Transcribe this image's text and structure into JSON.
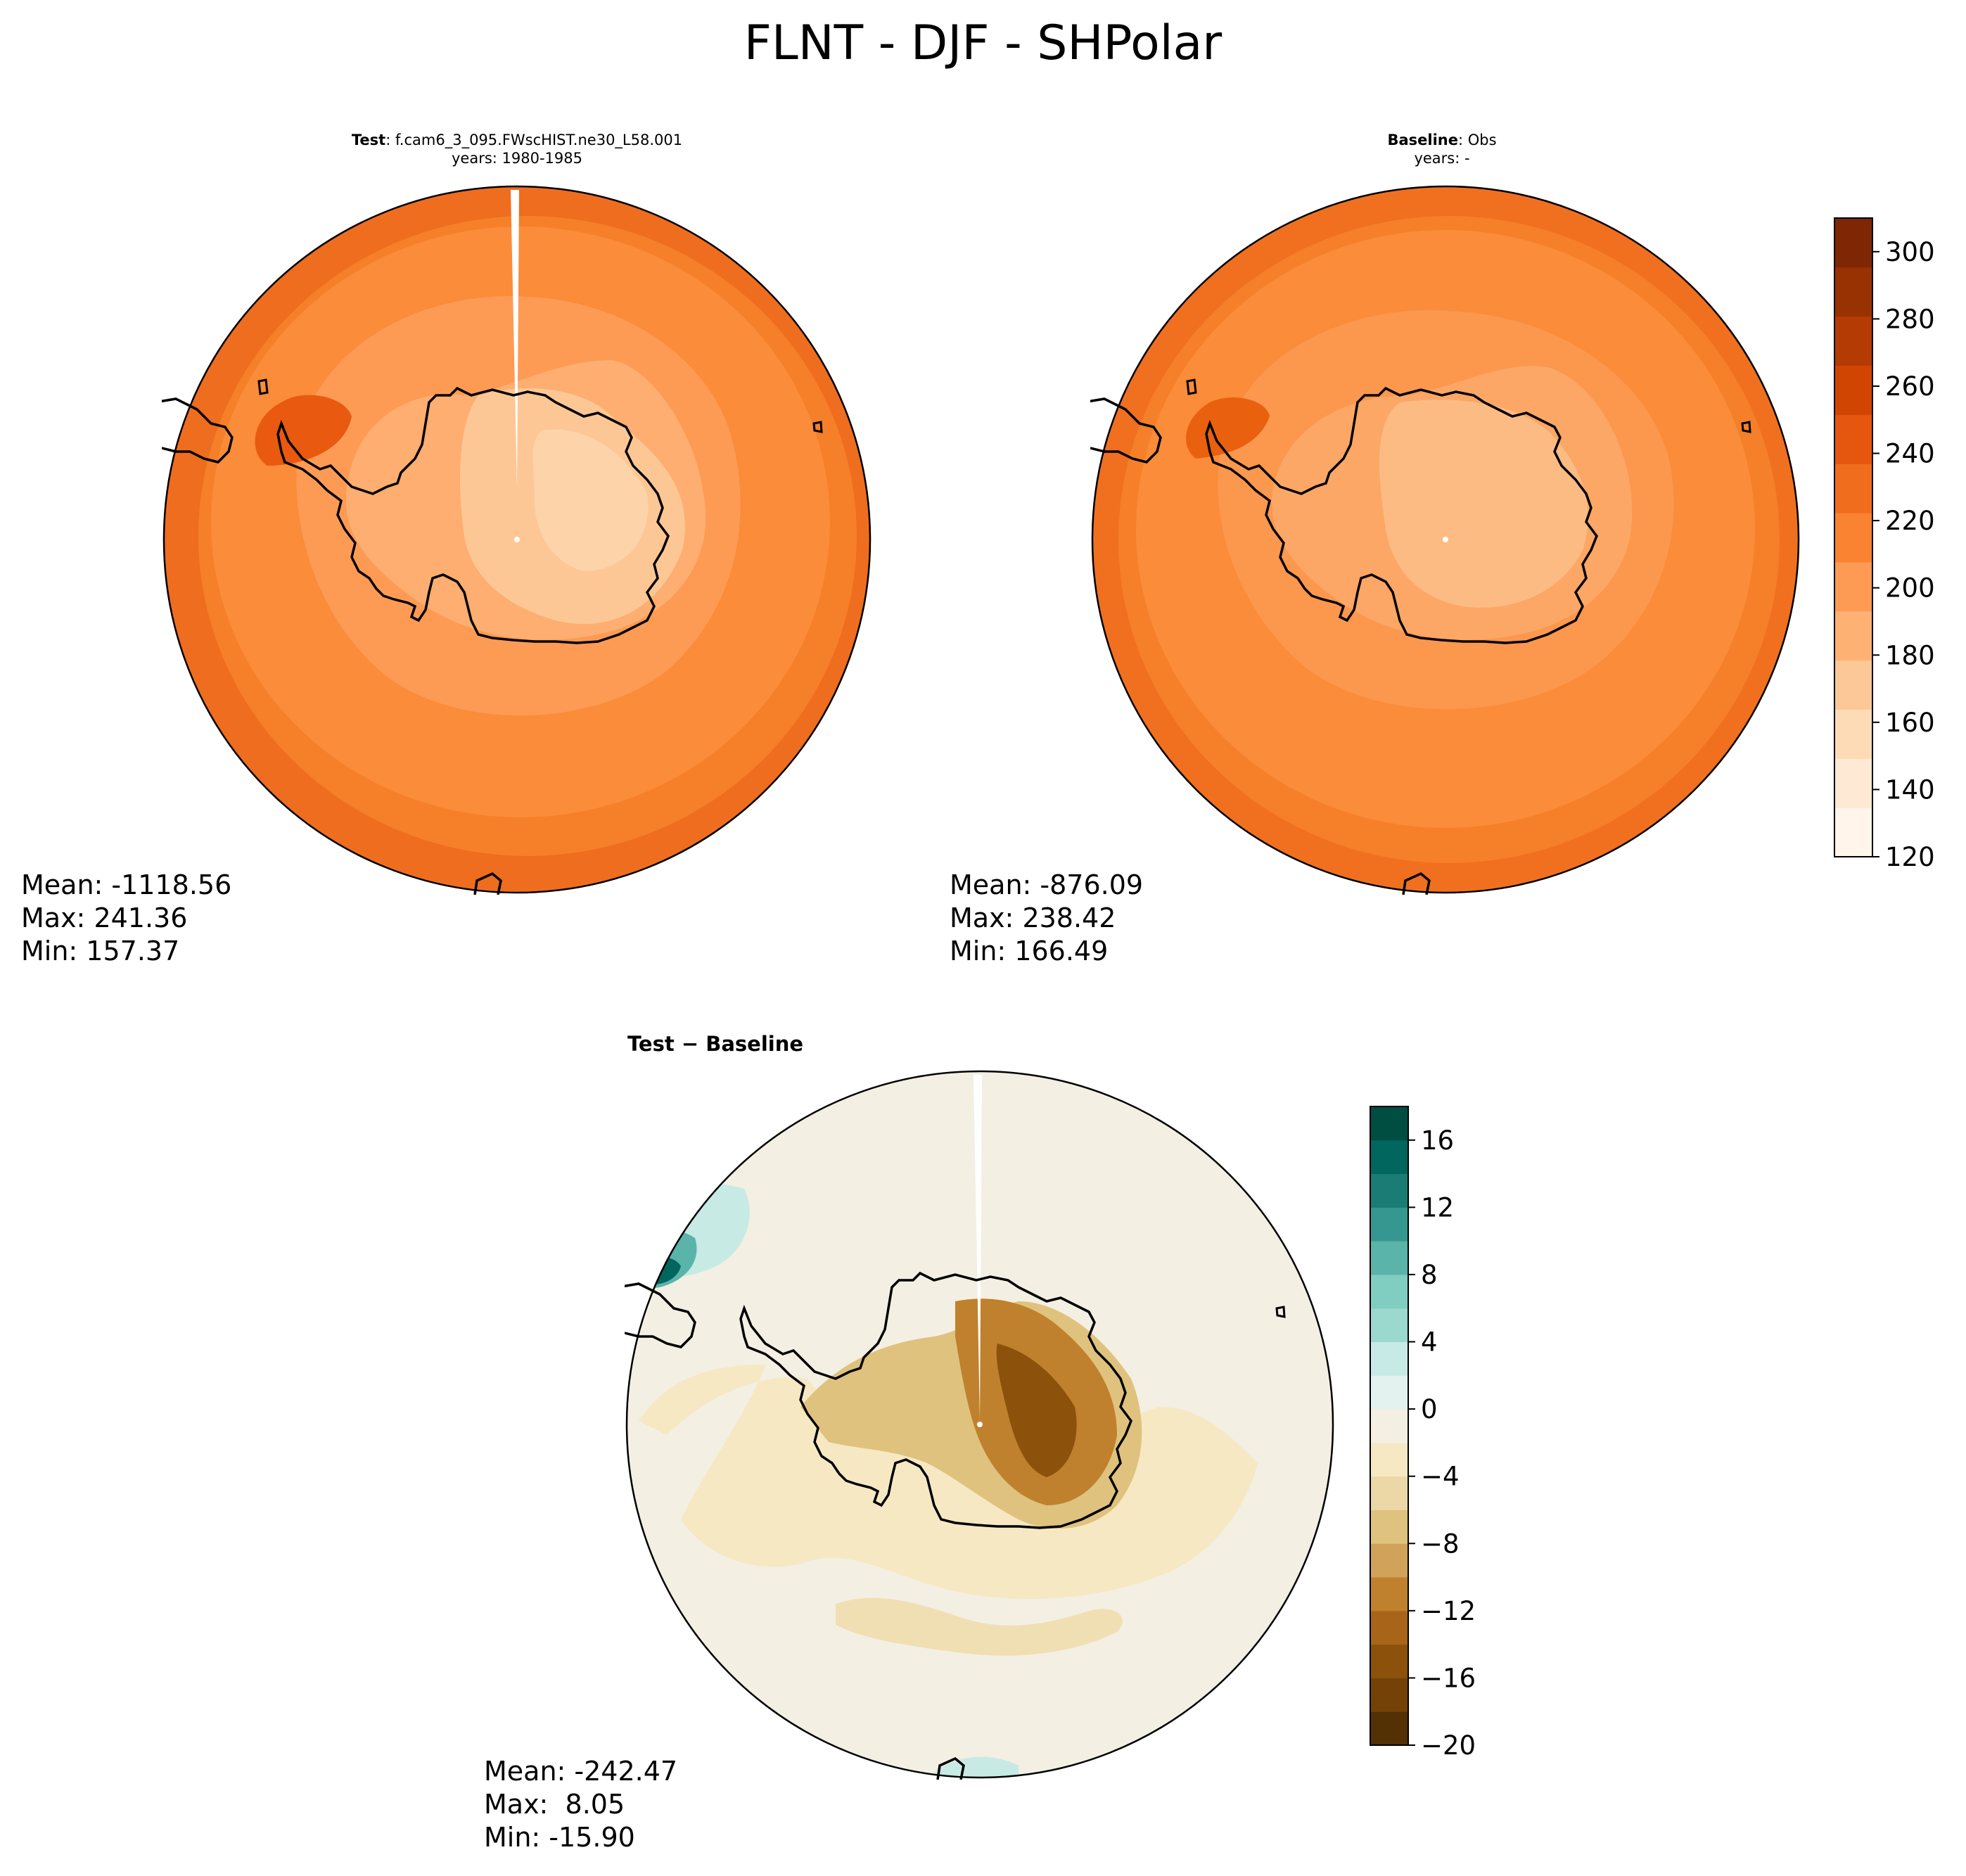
{
  "title": "FLNT - DJF - SHPolar",
  "panels": {
    "test": {
      "title_bold": "Test",
      "title_rest": ": f.cam6_3_095.FWscHIST.ne30_L58.001",
      "years": "years: 1980-1985",
      "stats": {
        "mean": "Mean: -1118.56",
        "max": "Max: 241.36",
        "min": "Min: 157.37"
      }
    },
    "baseline": {
      "title_bold": "Baseline",
      "title_rest": ": Obs",
      "years": "years: -",
      "stats": {
        "mean": "Mean: -876.09",
        "max": "Max: 238.42",
        "min": "Min: 166.49"
      }
    },
    "diff": {
      "title": "Test − Baseline",
      "stats": {
        "mean": "Mean: -242.47",
        "max": "Max:  8.05",
        "min": "Min: -15.90"
      }
    }
  },
  "chart_data": [
    {
      "type": "heatmap",
      "title": "Test : f.cam6_3_095.FWscHIST.ne30_L58.001 years: 1980-1985",
      "projection": "south polar stereographic",
      "colormap": "Oranges",
      "zlim": [
        120,
        310
      ],
      "mean": -1118.56,
      "max": 241.36,
      "min": 157.37
    },
    {
      "type": "heatmap",
      "title": "Baseline : Obs years: -",
      "projection": "south polar stereographic",
      "colormap": "Oranges",
      "zlim": [
        120,
        310
      ],
      "mean": -876.09,
      "max": 238.42,
      "min": 166.49
    },
    {
      "type": "heatmap",
      "title": "Test − Baseline",
      "projection": "south polar stereographic",
      "colormap": "BrBG",
      "zlim": [
        -20,
        18
      ],
      "mean": -242.47,
      "max": 8.05,
      "min": -15.9
    }
  ],
  "colorbars": {
    "main": {
      "ticks": [
        "300",
        "280",
        "260",
        "240",
        "220",
        "200",
        "180",
        "160",
        "140",
        "120"
      ],
      "colors": [
        "#fff5eb",
        "#fee9d4",
        "#fddbb7",
        "#fdc897",
        "#fdb274",
        "#fd9a53",
        "#fa8331",
        "#f06d1d",
        "#e5560e",
        "#d14502",
        "#b43b03",
        "#993203",
        "#7f2704"
      ]
    },
    "diff": {
      "ticks": [
        "16",
        "12",
        "8",
        "4",
        "0",
        "−4",
        "−8",
        "−12",
        "−16",
        "−20"
      ],
      "colors": [
        "#543005",
        "#744207",
        "#8c510a",
        "#a86519",
        "#bf812d",
        "#d0a25a",
        "#dfc27d",
        "#ecd7a7",
        "#f6e8c3",
        "#f4efe3",
        "#e4f2ef",
        "#c7eae5",
        "#9bd8ce",
        "#80cdc1",
        "#5ab4aa",
        "#35978f",
        "#1a7c74",
        "#01665e",
        "#004d42"
      ]
    }
  }
}
